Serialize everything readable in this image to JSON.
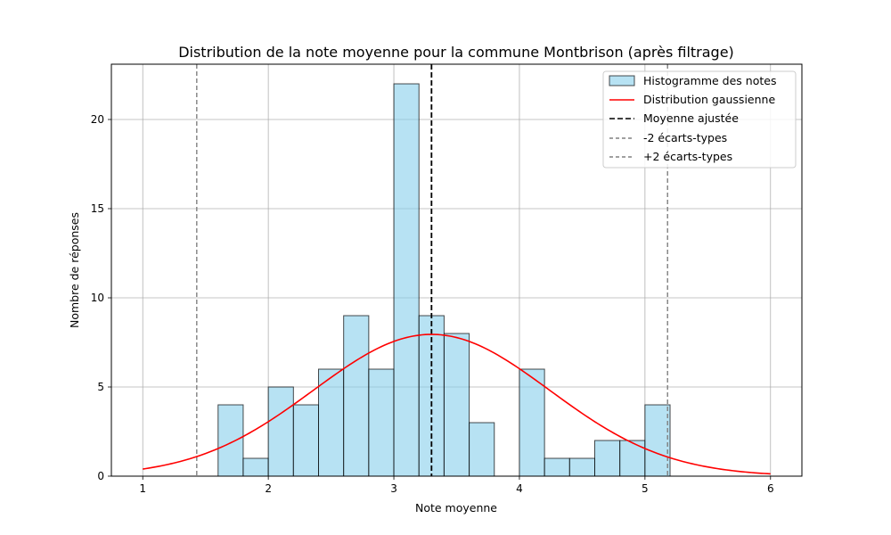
{
  "chart_data": {
    "type": "bar",
    "title": "Distribution de la note moyenne pour la commune Montbrison (après filtrage)",
    "xlabel": "Note moyenne",
    "ylabel": "Nombre de réponses",
    "xlim": [
      0.75,
      6.25
    ],
    "ylim": [
      0,
      23.1
    ],
    "xticks": [
      "1",
      "2",
      "3",
      "4",
      "5",
      "6"
    ],
    "yticks": [
      "0",
      "5",
      "10",
      "15",
      "20"
    ],
    "grid": true,
    "legend_position": "top-right",
    "histogram": {
      "name": "Histogramme des notes",
      "bin_edges": [
        1.6,
        1.8,
        2.0,
        2.2,
        2.4,
        2.6,
        2.8,
        3.0,
        3.2,
        3.4,
        3.6,
        3.8,
        4.0,
        4.2,
        4.4,
        4.6,
        4.8,
        5.0,
        5.2
      ],
      "counts": [
        4,
        1,
        5,
        4,
        6,
        9,
        6,
        22,
        9,
        8,
        3,
        0,
        6,
        1,
        1,
        2,
        2,
        4
      ],
      "color": "#87ceeb"
    },
    "gaussian": {
      "name": "Distribution gaussienne",
      "mean": 3.3,
      "std": 0.94,
      "peak": 7.95,
      "x_range": [
        1,
        6
      ],
      "color": "#ff0000"
    },
    "mean_line": {
      "name": "Moyenne ajustée",
      "x": 3.3,
      "color": "#000000"
    },
    "minus_2sd_line": {
      "name": "-2 écarts-types",
      "x": 1.43,
      "color": "#808080"
    },
    "plus_2sd_line": {
      "name": "+2 écarts-types",
      "x": 5.18,
      "color": "#808080"
    }
  }
}
